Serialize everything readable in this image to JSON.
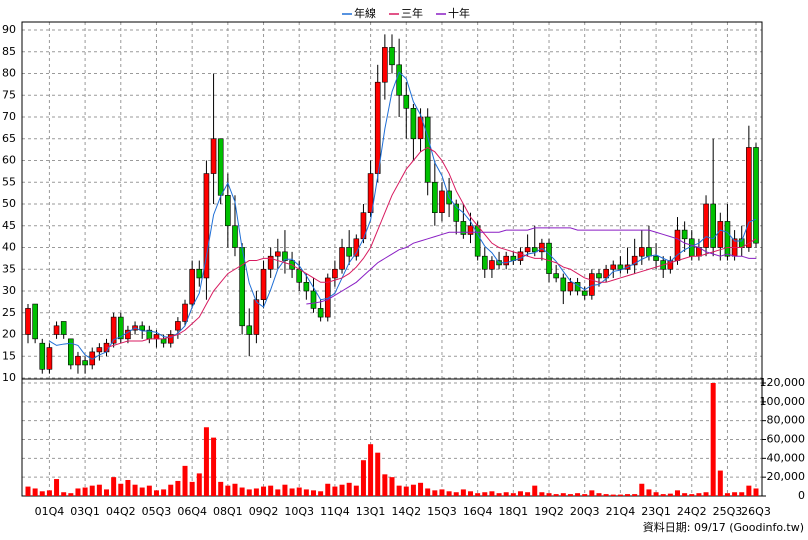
{
  "chart_data": {
    "type": "candlestick",
    "legend": "top",
    "grid": true,
    "source": "資料日期: 09/17 (Goodinfo.tw)",
    "up_color": "#ff0000",
    "down_color": "#00c000",
    "volume_color": "#ff0000",
    "categories": [
      null,
      null,
      null,
      "01Q4",
      null,
      null,
      null,
      null,
      "03Q1",
      null,
      null,
      null,
      null,
      "04Q2",
      null,
      null,
      null,
      null,
      "05Q3",
      null,
      null,
      null,
      null,
      "06Q4",
      null,
      null,
      null,
      null,
      "08Q1",
      null,
      null,
      null,
      null,
      "09Q2",
      null,
      null,
      null,
      null,
      "10Q3",
      null,
      null,
      null,
      null,
      "11Q4",
      null,
      null,
      null,
      null,
      "13Q1",
      null,
      null,
      null,
      null,
      "14Q2",
      null,
      null,
      null,
      null,
      "15Q3",
      null,
      null,
      null,
      null,
      "16Q4",
      null,
      null,
      null,
      null,
      "18Q1",
      null,
      null,
      null,
      null,
      "19Q2",
      null,
      null,
      null,
      null,
      "20Q3",
      null,
      null,
      null,
      null,
      "21Q4",
      null,
      null,
      null,
      null,
      "23Q1",
      null,
      null,
      null,
      null,
      "24Q2",
      null,
      null,
      null,
      null,
      "25Q3",
      null,
      null,
      null,
      "26Q3"
    ],
    "open": [
      20,
      27,
      18,
      12,
      20,
      23,
      19,
      13,
      14,
      13,
      16,
      16,
      18,
      24,
      19,
      21,
      22,
      21,
      19,
      19,
      18,
      21,
      23,
      27,
      35,
      33,
      57,
      65,
      52,
      45,
      40,
      22,
      20,
      28,
      35,
      38,
      39,
      37,
      35,
      32,
      30,
      26,
      24,
      33,
      35,
      40,
      38,
      42,
      48,
      57,
      78,
      86,
      82,
      75,
      72,
      65,
      70,
      55,
      48,
      53,
      50,
      46,
      43,
      45,
      38,
      35,
      37,
      36,
      38,
      37,
      39,
      40,
      39,
      41,
      34,
      33,
      30,
      32,
      30,
      29,
      34,
      33,
      35,
      36,
      35,
      36,
      38,
      40,
      38,
      37,
      35,
      37,
      44,
      42,
      38,
      40,
      50,
      40,
      46,
      38,
      42,
      40,
      63
    ],
    "high": [
      27,
      27,
      19,
      18,
      23,
      23,
      19,
      16,
      15,
      17,
      18,
      19,
      25,
      25,
      22,
      23,
      23,
      22,
      21,
      20,
      21,
      24,
      28,
      37,
      37,
      60,
      80,
      65,
      57,
      52,
      41,
      26,
      30,
      37,
      40,
      42,
      44,
      39,
      37,
      34,
      33,
      28,
      34,
      37,
      42,
      44,
      43,
      50,
      60,
      82,
      89,
      89,
      88,
      78,
      73,
      72,
      72,
      60,
      55,
      56,
      51,
      50,
      48,
      46,
      40,
      38,
      39,
      39,
      39,
      40,
      43,
      45,
      42,
      42,
      36,
      34,
      33,
      33,
      31,
      35,
      35,
      36,
      37,
      38,
      40,
      42,
      44,
      45,
      41,
      38,
      38,
      47,
      46,
      44,
      42,
      52,
      65,
      48,
      50,
      44,
      45,
      68,
      64
    ],
    "low": [
      18,
      18,
      11,
      11,
      19,
      19,
      12,
      11,
      11,
      12,
      14,
      15,
      17,
      18,
      18,
      20,
      19,
      18,
      17,
      17,
      17,
      19,
      22,
      26,
      31,
      28,
      50,
      50,
      40,
      38,
      20,
      15,
      18,
      26,
      33,
      35,
      34,
      33,
      30,
      28,
      25,
      23,
      23,
      31,
      34,
      36,
      37,
      41,
      47,
      55,
      74,
      80,
      70,
      65,
      60,
      62,
      52,
      45,
      46,
      47,
      43,
      42,
      41,
      37,
      33,
      33,
      35,
      35,
      36,
      36,
      38,
      38,
      37,
      32,
      32,
      27,
      29,
      29,
      28,
      28,
      31,
      32,
      33,
      34,
      34,
      34,
      36,
      37,
      35,
      33,
      34,
      36,
      39,
      37,
      37,
      38,
      38,
      37,
      37,
      37,
      38,
      39,
      40
    ],
    "close": [
      26,
      19,
      12,
      17,
      22,
      20,
      13,
      15,
      13,
      16,
      17,
      18,
      24,
      19,
      21,
      22,
      21,
      19,
      20,
      18,
      20,
      23,
      27,
      35,
      33,
      57,
      65,
      52,
      45,
      40,
      22,
      20,
      28,
      35,
      38,
      39,
      37,
      35,
      32,
      30,
      26,
      24,
      33,
      35,
      40,
      38,
      42,
      48,
      57,
      78,
      86,
      82,
      75,
      72,
      65,
      70,
      55,
      48,
      53,
      50,
      46,
      43,
      45,
      38,
      35,
      37,
      36,
      38,
      37,
      39,
      40,
      39,
      41,
      34,
      33,
      30,
      32,
      30,
      29,
      34,
      33,
      35,
      36,
      35,
      36,
      38,
      40,
      38,
      37,
      35,
      37,
      44,
      42,
      38,
      40,
      50,
      40,
      46,
      38,
      42,
      40,
      63,
      41
    ],
    "volume": {
      "axis": "y2",
      "values": [
        10000,
        8000,
        5000,
        6000,
        18000,
        4000,
        3000,
        8000,
        9000,
        11000,
        12000,
        7000,
        20000,
        13000,
        17000,
        12000,
        9000,
        11000,
        6000,
        7000,
        12000,
        16000,
        32000,
        15000,
        24000,
        73000,
        62000,
        15000,
        11000,
        13000,
        9000,
        7000,
        8000,
        10000,
        11000,
        7000,
        12000,
        8000,
        9000,
        7000,
        6000,
        5000,
        13000,
        10000,
        12000,
        14000,
        11000,
        38000,
        55000,
        46000,
        23000,
        20000,
        11000,
        10000,
        12000,
        14000,
        8000,
        6000,
        7000,
        5000,
        4000,
        7000,
        5000,
        3000,
        4000,
        5000,
        3000,
        4000,
        3000,
        5000,
        4000,
        11000,
        4000,
        3000,
        2000,
        3000,
        2000,
        3000,
        2000,
        6000,
        3000,
        2000,
        1500,
        1500,
        2000,
        2000,
        13000,
        7000,
        4000,
        2000,
        2500,
        6000,
        3000,
        2000,
        3000,
        4000,
        120000,
        27000,
        3000,
        4000,
        4000,
        11000,
        8000
      ]
    },
    "series": [
      {
        "name": "年線",
        "color": "#1f6fd6",
        "values": [
          null,
          null,
          null,
          18.5,
          17.5,
          17.8,
          18,
          17.5,
          15.3,
          14.3,
          15.3,
          16,
          18.8,
          19.5,
          20.5,
          21.5,
          20.8,
          20.8,
          20.5,
          19.5,
          19.3,
          20.3,
          22,
          26.3,
          29.5,
          38,
          47.5,
          51.8,
          54.8,
          50.5,
          39.8,
          31.8,
          27.5,
          26.3,
          30.3,
          35,
          37.3,
          37.3,
          35.8,
          33.5,
          30.8,
          28,
          28.3,
          29.5,
          33,
          36.5,
          38.8,
          42,
          46.3,
          56.3,
          67.3,
          75.8,
          80.3,
          78.8,
          73.5,
          70.5,
          65.5,
          59.5,
          56.5,
          51.5,
          49.3,
          48,
          46,
          43,
          40.3,
          38.8,
          36.5,
          36.5,
          37,
          37.5,
          38.5,
          38.8,
          39.8,
          38.5,
          36.8,
          34.5,
          32.3,
          31.3,
          30.3,
          31.3,
          31.5,
          32.8,
          34.5,
          34.8,
          35.5,
          36.3,
          37.3,
          38,
          38.3,
          37.5,
          36.8,
          38.3,
          39.5,
          40.3,
          41,
          42.5,
          42,
          44,
          43.5,
          41.5,
          41.5,
          45.8,
          46.5
        ]
      },
      {
        "name": "三年",
        "color": "#d81b60",
        "values": [
          null,
          null,
          null,
          null,
          null,
          null,
          null,
          null,
          null,
          null,
          null,
          17,
          17.5,
          18,
          18.5,
          18.5,
          18.5,
          19,
          19,
          19,
          19.5,
          20,
          21,
          22.5,
          24,
          27,
          30,
          32,
          34,
          35,
          36,
          37,
          37,
          37.5,
          37.5,
          37,
          36.5,
          36,
          35,
          34,
          33,
          32,
          32,
          32.5,
          33,
          34,
          35.5,
          37.5,
          40,
          44,
          48,
          52,
          55,
          58,
          60,
          62,
          63,
          62,
          60,
          57,
          53,
          50,
          47,
          45,
          43,
          41,
          40,
          39.5,
          39,
          38.5,
          38,
          37.5,
          37.5,
          37,
          36.5,
          35.5,
          35,
          34,
          33,
          32.5,
          32,
          32,
          32.5,
          33,
          33.5,
          34,
          34.5,
          35,
          35.5,
          36,
          36.5,
          37,
          37.5,
          38,
          38,
          38.5,
          39,
          39.5,
          40,
          40,
          40,
          41,
          42
        ]
      },
      {
        "name": "十年",
        "color": "#8a1fc4",
        "values": [
          null,
          null,
          null,
          null,
          null,
          null,
          null,
          null,
          null,
          null,
          null,
          null,
          null,
          null,
          null,
          null,
          null,
          null,
          null,
          null,
          null,
          null,
          null,
          null,
          null,
          null,
          null,
          null,
          null,
          null,
          null,
          null,
          null,
          null,
          null,
          null,
          null,
          null,
          null,
          27,
          27.2,
          27.5,
          28,
          29,
          30,
          31,
          32,
          33.5,
          35,
          36.5,
          37.5,
          38.5,
          39.5,
          40,
          41,
          41.5,
          42,
          42.5,
          43,
          43.5,
          43.5,
          43.5,
          43.5,
          43.5,
          43.5,
          43.5,
          43.5,
          44,
          44,
          44,
          44,
          44.5,
          44.5,
          44.5,
          44.5,
          44.5,
          44.5,
          44,
          44,
          44,
          44,
          44,
          44,
          44,
          44,
          44,
          44,
          44,
          43.5,
          43,
          42.5,
          42,
          41,
          40.5,
          40,
          39,
          38.5,
          38,
          38.5,
          38,
          38,
          37.5,
          37.5
        ]
      }
    ],
    "ylim": [
      10,
      90
    ],
    "yticks": [
      10,
      15,
      20,
      25,
      30,
      35,
      40,
      45,
      50,
      55,
      60,
      65,
      70,
      75,
      80,
      85,
      90
    ],
    "y2lim": [
      0,
      120000
    ],
    "y2ticks": [
      0,
      {
        "value": 20000,
        "label": "20,000"
      },
      {
        "value": 40000,
        "label": "40,000"
      },
      {
        "value": 60000,
        "label": "60,000"
      },
      {
        "value": 80000,
        "label": "80,000"
      },
      {
        "value": 100000,
        "label": "100,000"
      },
      {
        "value": 120000,
        "label": "120,000"
      }
    ]
  }
}
